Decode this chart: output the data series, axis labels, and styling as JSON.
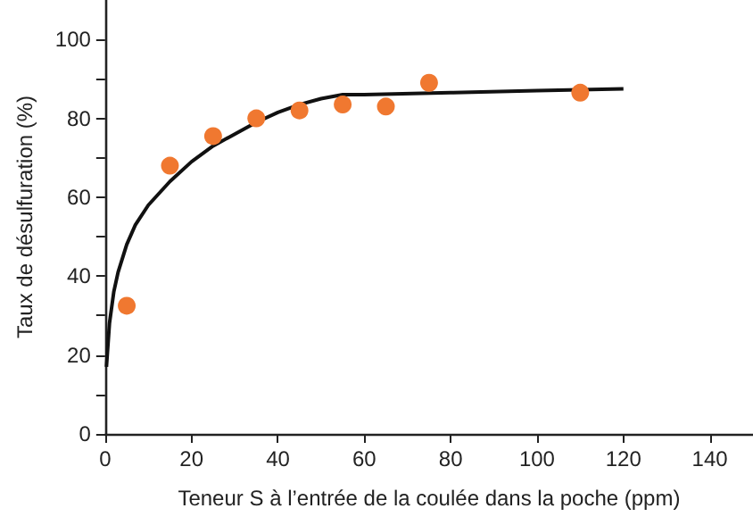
{
  "chart_data": {
    "type": "scatter",
    "xlabel": "Teneur S à l’entrée de la coulée dans la poche (ppm)",
    "ylabel": "Taux de désulfuration (%)",
    "series": [
      {
        "color": "#f07830",
        "marker": "circle",
        "x": [
          5,
          15,
          25,
          35,
          45,
          55,
          65,
          75,
          110
        ],
        "values": [
          32.5,
          68,
          75.5,
          80,
          82,
          83.5,
          83,
          89,
          86.5
        ]
      },
      {
        "type": "line",
        "color": "#111111",
        "marker": "none",
        "line_style": "solid",
        "x": [
          0.3,
          1,
          2,
          3,
          5,
          7,
          10,
          15,
          20,
          25,
          30,
          35,
          40,
          45,
          50,
          55,
          60,
          80,
          100,
          120
        ],
        "values": [
          17,
          28,
          36,
          41,
          48,
          53,
          58,
          64,
          69,
          73,
          76,
          79,
          81.5,
          83.5,
          85,
          86,
          86,
          86.5,
          87,
          87.5
        ]
      }
    ],
    "xlim": [
      0,
      150
    ],
    "xticks": [
      0,
      20,
      40,
      60,
      80,
      100,
      120,
      140
    ],
    "ylim": [
      0,
      110
    ],
    "yticks": [
      0,
      {
        "value": 10,
        "label": null
      },
      20,
      {
        "value": 30,
        "label": null
      },
      40,
      {
        "value": 50,
        "label": null
      },
      60,
      {
        "value": 70,
        "label": null
      },
      80,
      {
        "value": 90,
        "label": null
      },
      100
    ],
    "grid": false
  }
}
